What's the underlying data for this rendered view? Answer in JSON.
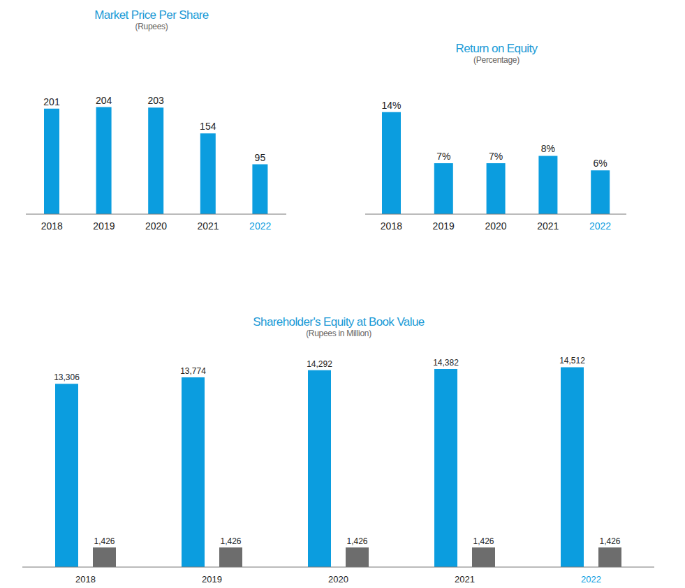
{
  "chart_data": [
    {
      "type": "bar",
      "title": "Market Price Per Share",
      "subtitle": "(Rupees)",
      "categories": [
        "2018",
        "2019",
        "2020",
        "2021",
        "2022"
      ],
      "values": [
        201,
        204,
        203,
        154,
        95
      ],
      "color": "#0b9ddf",
      "ylim": [
        0,
        250
      ],
      "data_labels": true,
      "tick_labels": "x"
    },
    {
      "type": "bar",
      "title": "Return on Equity",
      "subtitle": "(Percentage)",
      "categories": [
        "2018",
        "2019",
        "2020",
        "2021",
        "2022"
      ],
      "values": [
        14,
        7,
        7,
        8,
        6
      ],
      "value_labels": [
        "14%",
        "7%",
        "7%",
        "8%",
        "6%"
      ],
      "color": "#0b9ddf",
      "ylim": [
        0,
        18
      ],
      "data_labels": true,
      "tick_labels": "x"
    },
    {
      "type": "bar",
      "title": "Shareholder's Equity at Book Value",
      "subtitle": "(Rupees in Million)",
      "categories": [
        "2018",
        "2019",
        "2020",
        "2021",
        "2022"
      ],
      "series": [
        {
          "color": "#0b9ddf",
          "values": [
            13306,
            13774,
            14292,
            14382,
            14512
          ],
          "value_labels": [
            "13,306",
            "13,774",
            "14,292",
            "14,382",
            "14,512"
          ]
        },
        {
          "color": "#6d6d6d",
          "values": [
            1426,
            1426,
            1426,
            1426,
            1426
          ],
          "value_labels": [
            "1,426",
            "1,426",
            "1,426",
            "1,426",
            "1,426"
          ]
        }
      ],
      "ylim": [
        0,
        16000
      ],
      "data_labels": true,
      "tick_labels": "x"
    }
  ]
}
